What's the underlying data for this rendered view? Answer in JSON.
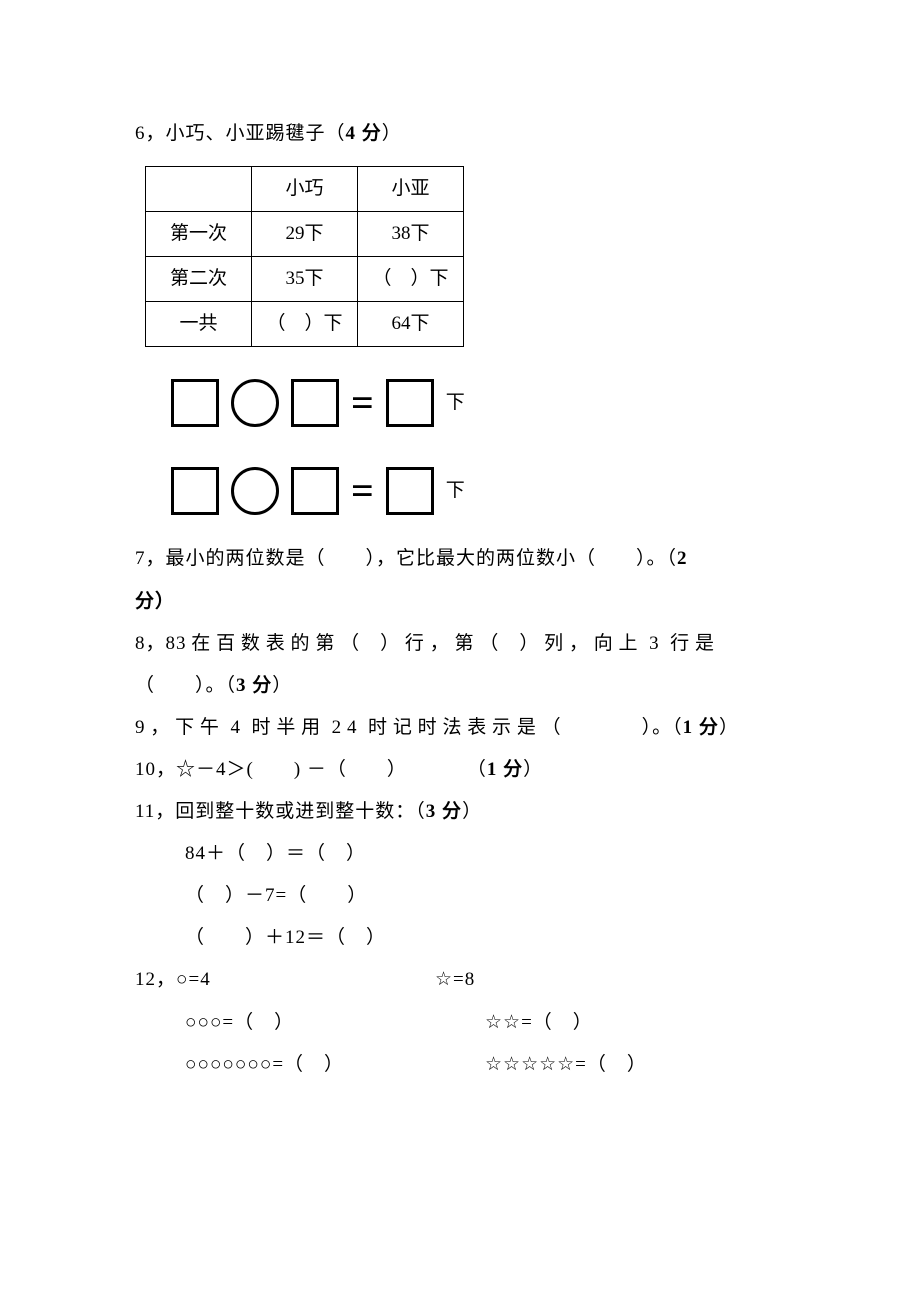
{
  "q6": {
    "label": "6，小巧、小亚踢毽子（",
    "points": "4 分",
    "close": "）",
    "table": {
      "headers": [
        "",
        "小巧",
        "小亚"
      ],
      "rows": [
        [
          "第一次",
          "29下",
          "38下"
        ],
        [
          "第二次",
          "35下",
          "（ ）下"
        ],
        [
          "一共",
          "（ ）下",
          "64下"
        ]
      ]
    },
    "suffix": "下"
  },
  "q7": {
    "text_a": "7，最小的两位数是（  ），它比最大的两位数小（  ）。（",
    "points": "2",
    "text_b": "分）"
  },
  "q8": {
    "line1": "8，83 在 百 数 表 的 第 （ ） 行 ， 第 （ ） 列 ， 向 上  3  行 是",
    "line2_a": "（  ）。（",
    "points": "3 分",
    "line2_b": "）"
  },
  "q9": {
    "text_a": "9 ， 下 午  4  时 半 用  2 4  时 记 时 法 表 示 是 （    ）。（",
    "points": "1 分",
    "text_b": "）"
  },
  "q10": {
    "text_a": "10，☆－4＞(  ) －（  ）   （",
    "points": "1 分",
    "text_b": "）"
  },
  "q11": {
    "title_a": "11，回到整十数或进到整十数：（",
    "points": "3 分",
    "title_b": "）",
    "eq1": "84＋（ ）＝（ ）",
    "eq2": "（ ）－7=（  ）",
    "eq3": "（  ）＋12＝（ ）"
  },
  "q12": {
    "title": "12，○=4",
    "title_r": "☆=8",
    "l1": "○○○=（ ）",
    "r1": "☆☆=（ ）",
    "l2": "○○○○○○○=（ ）",
    "r2": "☆☆☆☆☆=（ ）"
  }
}
